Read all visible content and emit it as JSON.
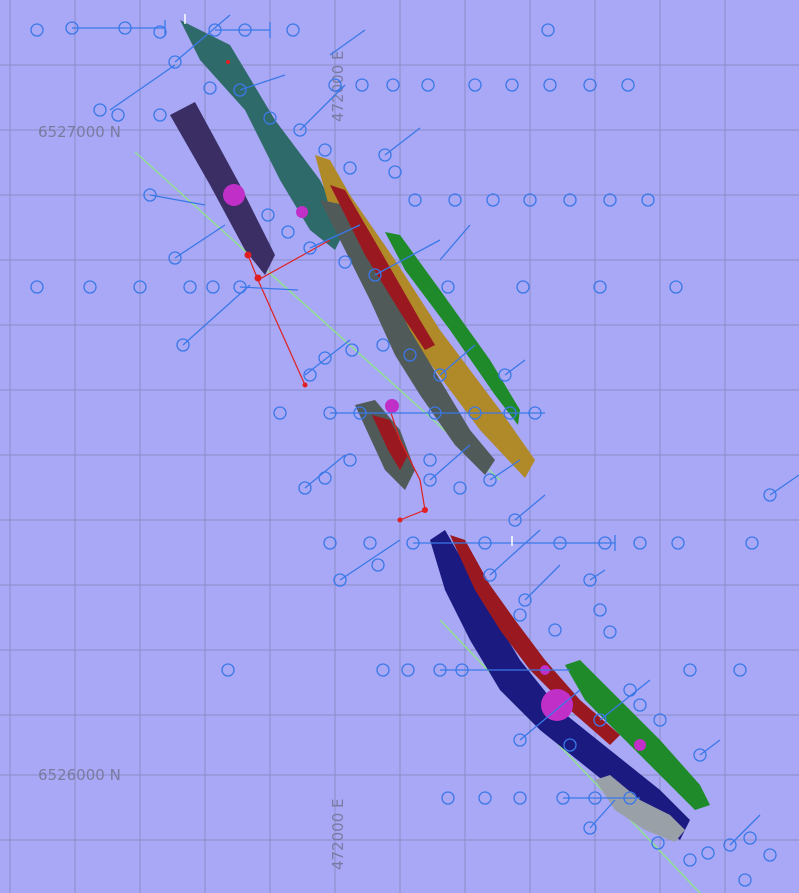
{
  "map": {
    "northing_labels": [
      "6527000 N",
      "6526000 N"
    ],
    "easting_labels": [
      "472000 E",
      "472000 E"
    ],
    "colors": {
      "background": "#a8a8f6",
      "grid": "#8c8cc8",
      "drillhole": "#3a78e8",
      "section_line": "#90e090",
      "red_trace": "#e02020",
      "magenta_marker": "#c030c8",
      "ore_teal": "#2f6a6a",
      "ore_dark_purple": "#3a2e64",
      "ore_olive": "#b08a28",
      "ore_green": "#1f8a2a",
      "ore_grey": "#505a58",
      "ore_darkred": "#9a1820",
      "ore_navy": "#1a1a80",
      "ore_lightgrey": "#9aa0a8"
    }
  }
}
